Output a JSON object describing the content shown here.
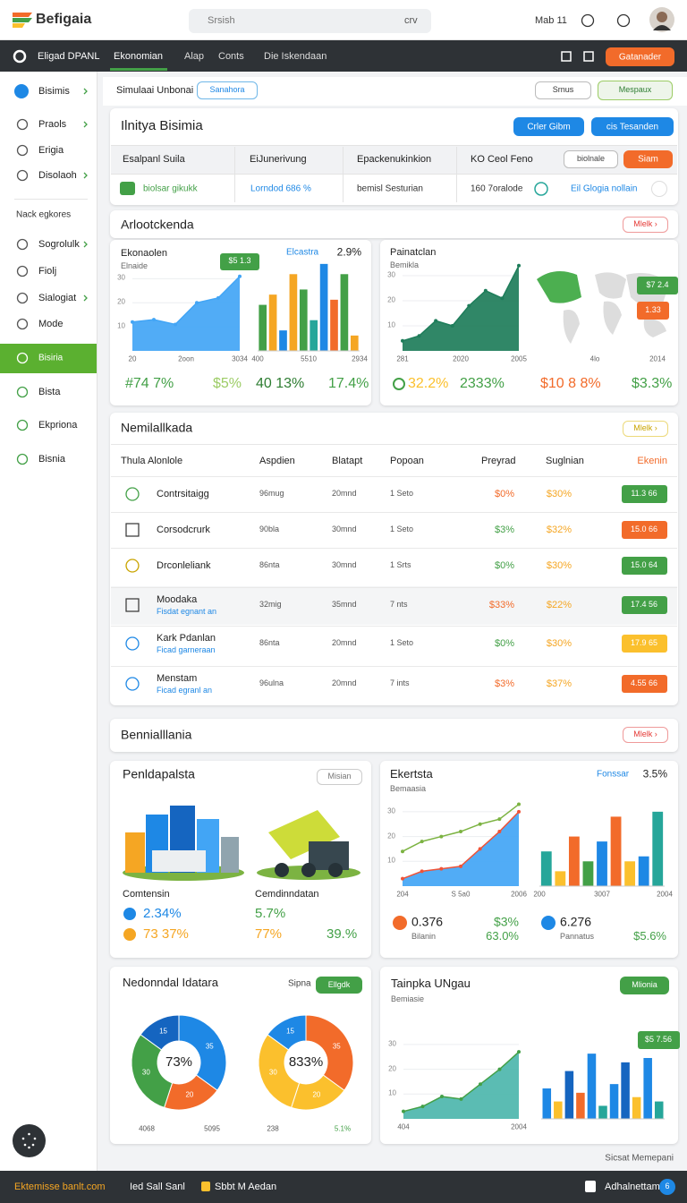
{
  "header": {
    "logo": "Befigaia",
    "search": "Srsish",
    "search_hint": "crv",
    "date": "Mab 11"
  },
  "nav": {
    "brand": "Eligad DPANL",
    "tabs": [
      "Ekonomian",
      "Alap",
      "Conts",
      "Die Iskendaan"
    ],
    "button": "Gatanader"
  },
  "sidebar": {
    "top": [
      "Bisimis",
      "Praols",
      "Erigia",
      "Disolaoh"
    ],
    "section": "Nack egkores",
    "items": [
      "Sogrolulk",
      "Fiolj",
      "Sialogiat",
      "Mode",
      "Bisiria",
      "Bista",
      "Ekpriona",
      "Bisnia"
    ]
  },
  "toolbar": {
    "title": "Simulaai Unbonai",
    "search_button": "Sanahora",
    "select": "Srnus",
    "button": "Mespaux"
  },
  "summary": {
    "title": "Ilnitya Bisimia",
    "buttons": [
      "Crler Gibm",
      "cis Tesanden"
    ],
    "columns": [
      "Esalpanl Suila",
      "EiJunerivung",
      "Epackenukinkion",
      "KO Ceol Feno"
    ],
    "filter": "biolnale",
    "action": "Siam",
    "row": [
      "biolsar gikukk",
      "Lorndod 686 %",
      "bemisl Sesturian",
      "160 7oralode",
      "Eil Glogia nollain"
    ]
  },
  "overview": {
    "title": "Arlootckenda",
    "button": "Mlelk ›",
    "panels": [
      {
        "title": "Ekonaolen",
        "subtitle": "Elnaide",
        "badge": "$5 1.3",
        "area": {
          "values": [
            12,
            13,
            11,
            20,
            22,
            31
          ],
          "ylim": [
            0,
            35
          ],
          "yticks": [
            10,
            20,
            30
          ],
          "x_labels": [
            "20",
            "2oon",
            "3034"
          ],
          "color": "#42a5f5"
        },
        "bars_title": "Elcastra",
        "bars_change": "2.9%",
        "bars": {
          "values": [
            18,
            22,
            8,
            30,
            24,
            12,
            34,
            20,
            30,
            6
          ],
          "colors": [
            "#43a047",
            "#f5a623",
            "#1e88e5",
            "#f5a623",
            "#43a047",
            "#26a69a",
            "#1e88e5",
            "#f26b2a",
            "#43a047",
            "#f5a623"
          ],
          "ylim": [
            0,
            35
          ],
          "x_labels": [
            "400",
            "5510",
            "2934"
          ]
        },
        "stats": [
          "#74 7%",
          "$5%",
          "40 13%",
          "17.4%"
        ]
      },
      {
        "title": "Painatclan",
        "subtitle": "Bemikla",
        "area": {
          "values": [
            4,
            6,
            12,
            10,
            18,
            24,
            21,
            34
          ],
          "ylim": [
            0,
            35
          ],
          "yticks": [
            10,
            20,
            30
          ],
          "x_labels": [
            "281",
            "2020",
            "2005"
          ],
          "color": "#1e7d5a"
        },
        "map_badges": [
          "$7 2.4",
          "1.33"
        ],
        "map_labels": [
          "4lo",
          "2014"
        ],
        "stats": [
          "32.2%",
          "2333%",
          "$10 8 8%",
          "$3.3%"
        ]
      }
    ]
  },
  "table": {
    "title": "Nemilallkada",
    "button": "Mlelk ›",
    "columns": [
      "Thula Alonlole",
      "Aspdien",
      "Blatapt",
      "Popoan",
      "Preyrad",
      "Suglnian",
      "Ekenin"
    ],
    "rows": [
      {
        "name": "Contrsitaigg",
        "cells": [
          "96mug",
          "20mnd",
          "1 Seto",
          "$0%",
          "$30%"
        ],
        "badge": "11.3 66",
        "badge_color": "#43a047"
      },
      {
        "name": "Corsodcrurk",
        "cells": [
          "90bla",
          "30mnd",
          "1 Seto",
          "$3%",
          "$32%"
        ],
        "badge": "15.0 66",
        "badge_color": "#f26b2a"
      },
      {
        "name": "Drconleliank",
        "cells": [
          "86nta",
          "30mnd",
          "1 Srts",
          "$0%",
          "$30%"
        ],
        "badge": "15.0 64",
        "badge_color": "#43a047"
      },
      {
        "name": "Moodaka",
        "sub": "Fisdat egnant an",
        "cells": [
          "32mig",
          "35mnd",
          "7 nts",
          "$33%",
          "$22%"
        ],
        "badge": "17.4 56",
        "badge_color": "#43a047"
      },
      {
        "name": "Kark Pdanlan",
        "sub": "Ficad garneraan",
        "cells": [
          "86nta",
          "20mnd",
          "1 Seto",
          "$0%",
          "$30%"
        ],
        "badge": "17.9 65",
        "badge_color": "#fbc02d"
      },
      {
        "name": "Menstam",
        "sub": "Ficad egranl an",
        "cells": [
          "96ulna",
          "20mnd",
          "7 ints",
          "$3%",
          "$37%"
        ],
        "badge": "4.55 66",
        "badge_color": "#f26b2a"
      }
    ]
  },
  "section": {
    "title": "Bennialllania",
    "button": "Mlelk ›"
  },
  "assets": {
    "title": "Penldapalsta",
    "button": "Misian",
    "names": [
      "Comtensin",
      "Cemdinndatan"
    ],
    "stats": [
      "2.34%",
      "73 37%",
      "5.7%",
      "77%",
      "39.%"
    ]
  },
  "trend": {
    "title": "Ekertsta",
    "subtitle": "Bemaasia",
    "legend": "Fonssar",
    "change": "3.5%",
    "area": {
      "values": [
        3,
        6,
        7,
        8,
        15,
        22,
        30
      ],
      "line": [
        14,
        18,
        20,
        22,
        25,
        27,
        33
      ],
      "ylim": [
        0,
        35
      ],
      "yticks": [
        10,
        20,
        30
      ],
      "x_labels": [
        "204",
        "S 5a0",
        "2006"
      ],
      "color": "#42a5f5",
      "edge": "#ef5338",
      "line_color": "#7cb342"
    },
    "bars": {
      "values": [
        14,
        6,
        20,
        10,
        18,
        28,
        10,
        12,
        30
      ],
      "colors": [
        "#26a69a",
        "#fbc02d",
        "#f26b2a",
        "#43a047",
        "#1e88e5",
        "#f26b2a",
        "#fbc02d",
        "#1e88e5",
        "#26a69a"
      ],
      "ylim": [
        0,
        35
      ],
      "x_labels": [
        "200",
        "3007",
        "2004"
      ]
    },
    "stats": [
      "0.376",
      "Bilanin",
      "$3%",
      "63.0%",
      "6.276",
      "Pannatus",
      "$5.6%"
    ]
  },
  "distribution": {
    "title": "Nedonndal Idatara",
    "legend": "Sipna",
    "button": "Ellgdk",
    "donuts": [
      {
        "center": "73%",
        "values": [
          35,
          20,
          30,
          15
        ],
        "colors": [
          "#1e88e5",
          "#f26b2a",
          "#43a047",
          "#1565c0"
        ]
      },
      {
        "center": "833%",
        "values": [
          35,
          20,
          30,
          15
        ],
        "colors": [
          "#f26b2a",
          "#fbc02d",
          "#fbc02d",
          "#1e88e5"
        ]
      }
    ],
    "x_labels": [
      "4068",
      "5095",
      "238",
      "5.1%"
    ]
  },
  "growth": {
    "title": "Tainpka UNgau",
    "subtitle": "Bemiasie",
    "button": "Mlionia",
    "badge": "$5 7.56",
    "area": {
      "values": [
        3,
        5,
        9,
        8,
        14,
        20,
        27
      ],
      "ylim": [
        0,
        35
      ],
      "yticks": [
        10,
        20,
        30
      ],
      "x_labels": [
        "404",
        "2004"
      ],
      "color": "#4db6ac",
      "edge": "#43a047"
    },
    "bars": {
      "values": [
        14,
        8,
        22,
        12,
        30,
        6,
        16,
        26,
        10,
        28,
        8
      ],
      "colors": [
        "#1e88e5",
        "#fbc02d",
        "#1565c0",
        "#f26b2a",
        "#1e88e5",
        "#26a69a",
        "#1e88e5",
        "#1565c0",
        "#fbc02d",
        "#1e88e5",
        "#26a69a"
      ],
      "ylim": [
        0,
        35
      ]
    }
  },
  "credit": "Sicsat Memepani",
  "footer": {
    "left": "Ektemisse banlt.com",
    "items": [
      "Ied Sall Sanl",
      "Sbbt M Aedan"
    ],
    "right": "Adhalnettam",
    "badge": "6"
  }
}
